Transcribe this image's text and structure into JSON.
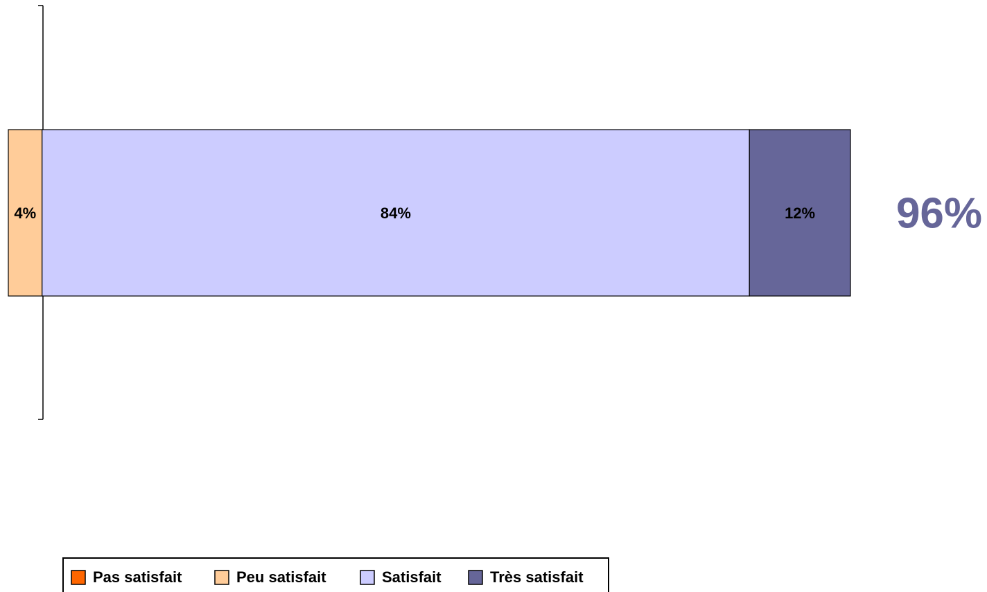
{
  "chart_data": {
    "type": "bar",
    "orientation": "horizontal",
    "stacked": true,
    "categories": [
      null
    ],
    "series": [
      {
        "name": "Pas satisfait",
        "color": "#ff6600",
        "values": [
          0
        ]
      },
      {
        "name": "Peu satisfait",
        "color": "#ffcc99",
        "values": [
          -4
        ],
        "value_labels": [
          "4%"
        ]
      },
      {
        "name": "Satisfait",
        "color": "#ccccff",
        "values": [
          84
        ],
        "value_labels": [
          "84%"
        ]
      },
      {
        "name": "Très satisfait",
        "color": "#666699",
        "values": [
          12
        ],
        "value_labels": [
          "12%"
        ]
      }
    ],
    "xlim": [
      -4,
      96
    ],
    "annotation": "96%",
    "legend": "bottom"
  }
}
